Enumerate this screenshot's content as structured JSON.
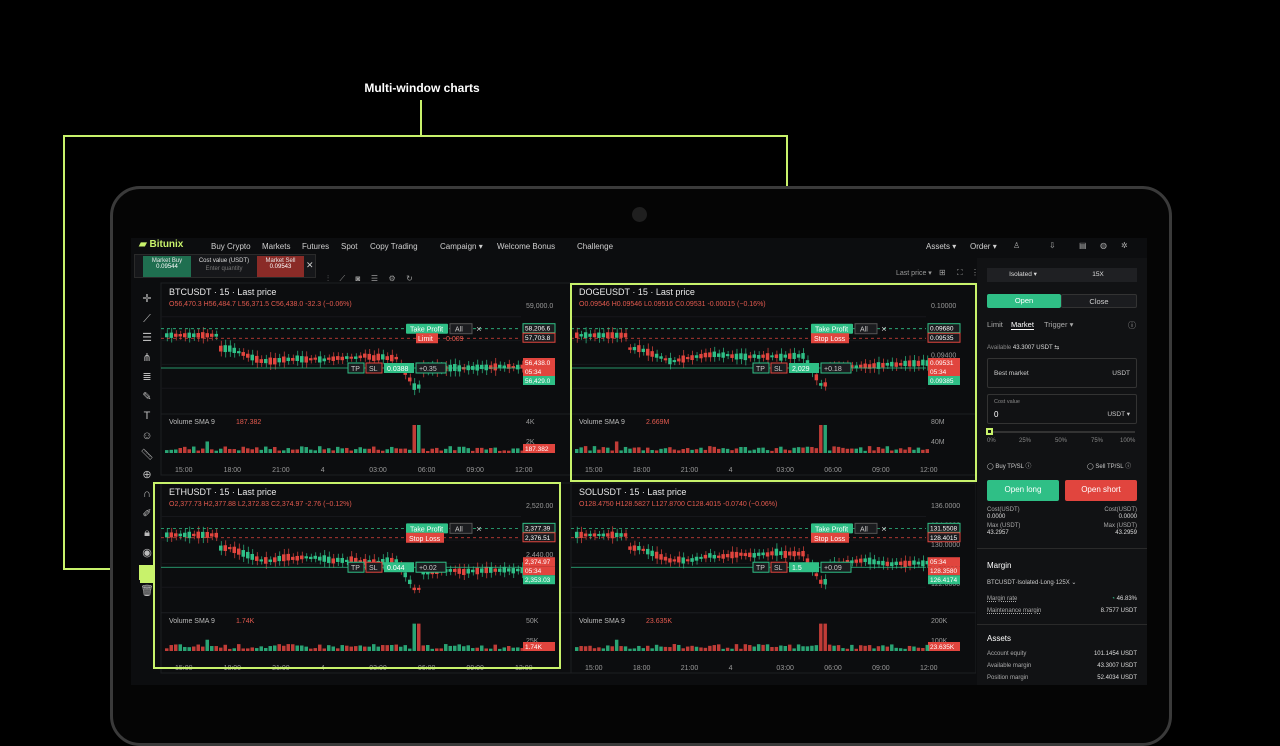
{
  "headline": "Multi-window charts",
  "brand": "Bitunix",
  "nav": {
    "items": [
      "Buy Crypto",
      "Markets",
      "Futures",
      "Spot",
      "Copy Trading",
      "Campaign",
      "Welcome Bonus",
      "Challenge"
    ],
    "right": [
      "Assets",
      "Order"
    ]
  },
  "quick_trade": {
    "market_buy_label": "Market Buy",
    "market_buy_price": "0.09544",
    "cost_label": "Cost value (USDT)",
    "cost_placeholder": "Enter quantity",
    "market_sell_label": "Market Sell",
    "market_sell_price": "0.09543"
  },
  "chart_toolbar": {
    "price_mode": "Last price"
  },
  "charts": [
    {
      "id": "btc",
      "title": "BTCUSDT · 15 · Last price",
      "ohlc": {
        "o": "56,470.3",
        "h": "56,484.7",
        "l": "56,371.5",
        "c": "56,438.0",
        "chg": "-32.3 (−0.06%)"
      },
      "price_ticks": [
        "59,000.0",
        "58,000.0",
        "57,000.0"
      ],
      "price_tags": [
        "58,206.6",
        "57,703.8",
        "56,438.0",
        "05:34",
        "56,429.0"
      ],
      "orders": {
        "tp": "Take Profit",
        "limit": "Limit",
        "limit_qty": "0.009",
        "all": "All",
        "pos_qty": "0.0388",
        "pnl": "+0.35",
        "tp_short": "TP",
        "sl_short": "SL"
      },
      "volume": {
        "label": "Volume",
        "ind": "SMA 9",
        "value": "187.382",
        "ticks": [
          "4K",
          "2K"
        ],
        "tag": "187.382"
      },
      "time_ticks": [
        "15:00",
        "18:00",
        "21:00",
        "4",
        "03:00",
        "06:00",
        "09:00",
        "12:00"
      ]
    },
    {
      "id": "doge",
      "title": "DOGEUSDT · 15 · Last price",
      "ohlc": {
        "o": "0.09546",
        "h": "0.09546",
        "l": "0.09516",
        "c": "0.09531",
        "chg": "-0.00015 (−0.16%)"
      },
      "price_ticks": [
        "0.10000",
        "0.09800",
        "0.09400",
        "0.09200"
      ],
      "price_tags": [
        "0.09680",
        "0.09535",
        "0.09531",
        "05:34",
        "0.09385"
      ],
      "orders": {
        "tp": "Take Profit",
        "sl": "Stop Loss",
        "all": "All",
        "pos_qty": "2,029",
        "pnl": "+0.18",
        "tp_short": "TP",
        "sl_short": "SL"
      },
      "volume": {
        "label": "Volume",
        "ind": "SMA 9",
        "value": "2.669M",
        "ticks": [
          "80M",
          "40M"
        ]
      },
      "time_ticks": [
        "15:00",
        "18:00",
        "21:00",
        "4",
        "03:00",
        "06:00",
        "09:00",
        "12:00"
      ]
    },
    {
      "id": "eth",
      "title": "ETHUSDT · 15 · Last price",
      "ohlc": {
        "o": "2,377.73",
        "h": "2,377.88",
        "l": "2,372.83",
        "c": "2,374.97",
        "chg": "-2.76 (−0.12%)"
      },
      "price_ticks": [
        "2,520.00",
        "2,480.00",
        "2,440.00",
        "2,320.00"
      ],
      "price_tags": [
        "2,377.39",
        "2,376.51",
        "2,374.97",
        "05:34",
        "2,353.03"
      ],
      "orders": {
        "tp": "Take Profit",
        "sl": "Stop Loss",
        "all": "All",
        "pos_qty": "0.044",
        "pnl": "+0.02",
        "tp_short": "TP",
        "sl_short": "SL"
      },
      "volume": {
        "label": "Volume",
        "ind": "SMA 9",
        "value": "1.74K",
        "ticks": [
          "50K",
          "25K"
        ],
        "tag": "1.74K"
      },
      "time_ticks": [
        "15:00",
        "18:00",
        "21:00",
        "4",
        "03:00",
        "06:00",
        "09:00",
        "12:00"
      ]
    },
    {
      "id": "sol",
      "title": "SOLUSDT · 15 · Last price",
      "ohlc": {
        "o": "128.4750",
        "h": "128.5827",
        "l": "127.8700",
        "c": "128.4015",
        "chg": "-0.0740 (−0.06%)"
      },
      "price_ticks": [
        "136.0000",
        "134.0000",
        "130.0000",
        "124.0000",
        "122.0000"
      ],
      "price_tags": [
        "131.5508",
        "128.4015",
        "05:34",
        "128.3580",
        "126.4174"
      ],
      "orders": {
        "tp": "Take Profit",
        "sl": "Stop Loss",
        "all": "All",
        "pos_qty": "1.5",
        "pnl": "+0.09",
        "tp_short": "TP",
        "sl_short": "SL"
      },
      "volume": {
        "label": "Volume",
        "ind": "SMA 9",
        "value": "23.635K",
        "ticks": [
          "200K",
          "100K"
        ],
        "tag": "23.635K"
      },
      "time_ticks": [
        "15:00",
        "18:00",
        "21:00",
        "4",
        "03:00",
        "06:00",
        "09:00",
        "12:00"
      ]
    }
  ],
  "order_panel": {
    "margin_mode": "Isolated",
    "leverage": "15X",
    "open": "Open",
    "close": "Close",
    "tabs": [
      "Limit",
      "Market",
      "Trigger"
    ],
    "available_label": "Available",
    "available_value": "43.3007 USDT",
    "best_market": "Best market",
    "best_market_unit": "USDT",
    "cost_label": "Cost value",
    "cost_value": "0",
    "cost_unit": "USDT",
    "slider_ticks": [
      "0%",
      "25%",
      "50%",
      "75%",
      "100%"
    ],
    "buy_tpsl": "Buy TP/SL",
    "sell_tpsl": "Sell TP/SL",
    "open_long": "Open long",
    "open_short": "Open short",
    "cost_usdt_label": "Cost(USDT)",
    "cost_long": "0.0000",
    "cost_short": "0.0000",
    "max_usdt_label": "Max (USDT)",
    "max_long": "43.2957",
    "max_short": "43.2959",
    "margin_title": "Margin",
    "margin_symbol": "BTCUSDT·Isolated·Long·125X",
    "margin_rate_label": "Margin rate",
    "margin_rate": "46.83%",
    "maint_label": "Maintenance margin",
    "maint_value": "8.7577 USDT",
    "assets_title": "Assets",
    "equity_label": "Account equity",
    "equity_value": "101.1454 USDT",
    "avail_margin_label": "Available margin",
    "avail_margin_value": "43.3007 USDT",
    "pos_margin_label": "Position margin",
    "pos_margin_value": "52.4034 USDT"
  }
}
